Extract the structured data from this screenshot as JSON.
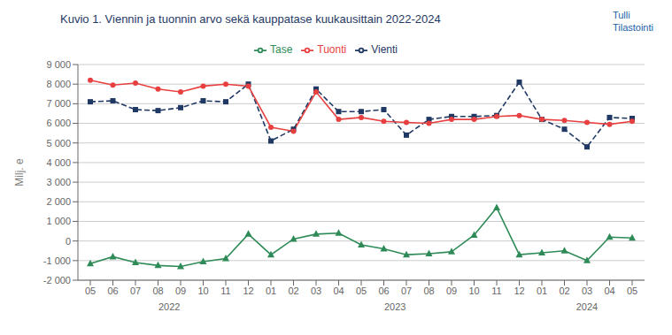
{
  "chart_data": {
    "type": "line",
    "title": "Kuvio 1. Viennin ja tuonnin arvo sekä kauppatase kuukausittain  2022-2024",
    "annotations": [
      "Tulli",
      "Tilastointi"
    ],
    "x_group_labels": [
      "2022",
      "2023",
      "2024"
    ],
    "y_label": "Milj. e",
    "categories": [
      "05",
      "06",
      "07",
      "08",
      "09",
      "10",
      "11",
      "12",
      "01",
      "02",
      "03",
      "04",
      "05",
      "06",
      "07",
      "08",
      "09",
      "10",
      "11",
      "12",
      "01",
      "02",
      "03",
      "04",
      "05"
    ],
    "series": [
      {
        "name": "Vienti",
        "color": "#1f3864",
        "marker": "square",
        "line_style": "dashed",
        "values": [
          7100,
          7150,
          6700,
          6650,
          6800,
          7150,
          7100,
          8000,
          5100,
          5700,
          7750,
          6600,
          6600,
          6700,
          5400,
          6200,
          6350,
          6350,
          6400,
          8100,
          6200,
          5700,
          4800,
          6300,
          6250
        ]
      },
      {
        "name": "Tuonti",
        "color": "#e84040",
        "marker": "circle",
        "line_style": "solid",
        "values": [
          8200,
          7950,
          8050,
          7750,
          7600,
          7900,
          8000,
          7900,
          5800,
          5600,
          7600,
          6200,
          6300,
          6100,
          6050,
          6000,
          6200,
          6200,
          6350,
          6400,
          6200,
          6150,
          6050,
          5950,
          6100
        ]
      },
      {
        "name": "Tase",
        "color": "#2e8b57",
        "marker": "triangle",
        "line_style": "solid",
        "values": [
          -1150,
          -800,
          -1100,
          -1250,
          -1300,
          -1050,
          -900,
          350,
          -700,
          100,
          350,
          400,
          -200,
          -400,
          -700,
          -650,
          -550,
          300,
          1700,
          -700,
          -600,
          -500,
          -1000,
          200,
          150
        ]
      }
    ],
    "ylim": [
      -2000,
      9000
    ],
    "yticks": [
      {
        "value": -2000,
        "label": "-2 000"
      },
      {
        "value": -1000,
        "label": "-1 000"
      },
      0,
      {
        "value": 1000,
        "label": "1 000"
      },
      {
        "value": 2000,
        "label": "2 000"
      },
      {
        "value": 3000,
        "label": "3 000"
      },
      {
        "value": 4000,
        "label": "4 000"
      },
      {
        "value": 5000,
        "label": "5 000"
      },
      {
        "value": 6000,
        "label": "6 000"
      },
      {
        "value": 7000,
        "label": "7 000"
      },
      {
        "value": 8000,
        "label": "8 000"
      },
      {
        "value": 9000,
        "label": "9 000"
      }
    ],
    "grid": true,
    "legend": "top"
  }
}
